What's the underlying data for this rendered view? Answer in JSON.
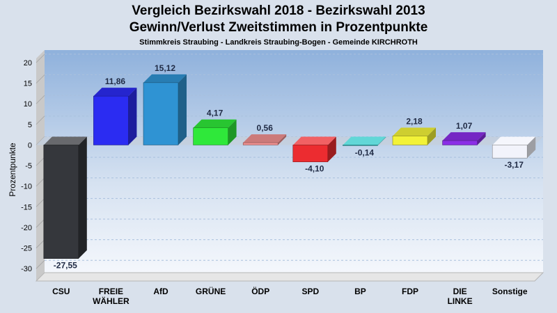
{
  "chart_data": {
    "type": "bar",
    "title": "Vergleich Bezirkswahl 2018 - Bezirkswahl 2013",
    "subtitle": "Gewinn/Verlust Zweitstimmen in Prozentpunkte",
    "subtitle2": "Stimmkreis Straubing - Landkreis Straubing-Bogen - Gemeinde KIRCHROTH",
    "ylabel": "Prozentpunkte",
    "ylim": [
      -33,
      21
    ],
    "yticks": [
      20,
      15,
      10,
      5,
      0,
      -5,
      -10,
      -15,
      -20,
      -25,
      -30
    ],
    "grid": true,
    "categories": [
      [
        "CSU"
      ],
      [
        "FREIE",
        "WÄHLER"
      ],
      [
        "AfD"
      ],
      [
        "GRÜNE"
      ],
      [
        "ÖDP"
      ],
      [
        "SPD"
      ],
      [
        "BP"
      ],
      [
        "FDP"
      ],
      [
        "DIE",
        "LINKE"
      ],
      [
        "Sonstige"
      ]
    ],
    "values": [
      -27.55,
      11.86,
      15.12,
      4.17,
      0.56,
      -4.1,
      -0.14,
      2.18,
      1.07,
      -3.17
    ],
    "value_labels": [
      "-27,55",
      "11,86",
      "15,12",
      "4,17",
      "0,56",
      "-4,10",
      "-0,14",
      "2,18",
      "1,07",
      "-3,17"
    ],
    "colors": [
      "#35373c",
      "#2b2cf2",
      "#2f93d3",
      "#2fe83a",
      "#f09090",
      "#ec2c30",
      "#2ccaca",
      "#f2f238",
      "#8a2ee6",
      "#f2f3fb"
    ]
  }
}
